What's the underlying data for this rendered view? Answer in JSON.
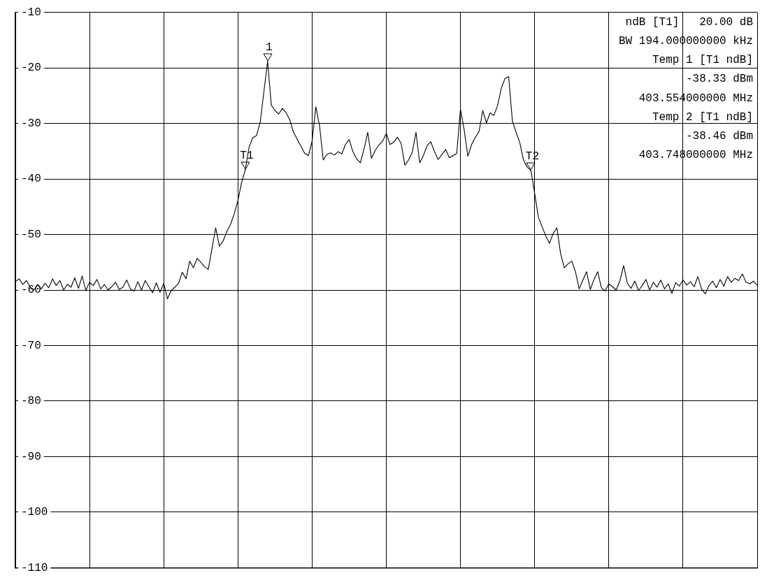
{
  "chart_data": {
    "type": "line",
    "categories": [
      null,
      null,
      null,
      null,
      null,
      null,
      null,
      null,
      null,
      null,
      null,
      null,
      null,
      null,
      null,
      null,
      null,
      null,
      null,
      null,
      null,
      null,
      null,
      null,
      null,
      null,
      null,
      null,
      null,
      null,
      null,
      null,
      null,
      null,
      null,
      null,
      null,
      null,
      null,
      null,
      null,
      null,
      null,
      null,
      null,
      null,
      null,
      null,
      null,
      null,
      null,
      null,
      null,
      null,
      null,
      null,
      null,
      null,
      null,
      null,
      null,
      null,
      null,
      null,
      null,
      null,
      null,
      null,
      null,
      null,
      null,
      null,
      null,
      null,
      null,
      null,
      null,
      null,
      null,
      null,
      null,
      null,
      null,
      null,
      null,
      null,
      null,
      null,
      null,
      null,
      null,
      null,
      null,
      null,
      null,
      null,
      null,
      null,
      null,
      null,
      null,
      null,
      null,
      null,
      null,
      null,
      null,
      null,
      null,
      null,
      null,
      null,
      null,
      null,
      null,
      null,
      null,
      null,
      null,
      null,
      null,
      null,
      null,
      null,
      null,
      null,
      null,
      null,
      null,
      null,
      null,
      null,
      null,
      null,
      null,
      null,
      null,
      null,
      null,
      null,
      null,
      null,
      null,
      null,
      null,
      null,
      null,
      null,
      null,
      null,
      null,
      null,
      null,
      null,
      null,
      null,
      null,
      null,
      null,
      null,
      null,
      null,
      null,
      null,
      null,
      null,
      null,
      null,
      null,
      null,
      null,
      null,
      null,
      null,
      null,
      null,
      null,
      null,
      null,
      null,
      null,
      null,
      null,
      null,
      null,
      null,
      null,
      null,
      null,
      null,
      null,
      null,
      null,
      null,
      null,
      null,
      null,
      null,
      null,
      null,
      null
    ],
    "series": [
      {
        "color": "#000000",
        "values": [
          -58.5,
          -58,
          -59,
          -58.3,
          -59.5,
          -60,
          -59,
          -59.8,
          -58.8,
          -59.6,
          -58,
          -59.2,
          -58.3,
          -60,
          -59,
          -59.5,
          -57.8,
          -59.7,
          -57.5,
          -60.1,
          -58.6,
          -59.2,
          -58.1,
          -59.8,
          -59,
          -60,
          -59.4,
          -58.6,
          -59.9,
          -59.5,
          -58.2,
          -59.8,
          -60.2,
          -58.5,
          -60,
          -58.3,
          -59.4,
          -60.5,
          -58.7,
          -60.4,
          -58.8,
          -61.6,
          -60.1,
          -59.5,
          -58.8,
          -56.8,
          -58,
          -54.8,
          -56,
          -54.3,
          -55,
          -55.8,
          -56.3,
          -52.6,
          -48.8,
          -52.1,
          -51.2,
          -49.5,
          -48.2,
          -46.3,
          -43.9,
          -40.6,
          -38.33,
          -34.3,
          -32.6,
          -32.2,
          -29.8,
          -24.3,
          -18.8,
          -26.7,
          -27.7,
          -28.3,
          -27.3,
          -28.1,
          -29.4,
          -31.6,
          -32.9,
          -34.1,
          -35.4,
          -35.8,
          -33.2,
          -27,
          -30.4,
          -36.6,
          -35.6,
          -35.3,
          -35.7,
          -35.1,
          -35.5,
          -33.8,
          -32.9,
          -35.1,
          -36.4,
          -37.1,
          -34.6,
          -31.6,
          -36.3,
          -34.9,
          -33.9,
          -33.2,
          -31.8,
          -33.8,
          -33.4,
          -32.5,
          -33.6,
          -37.5,
          -36.6,
          -35.2,
          -31.6,
          -37.1,
          -35.8,
          -34,
          -33.3,
          -35.1,
          -36.5,
          -35.6,
          -34.7,
          -36.2,
          -35.8,
          -35.4,
          -27.4,
          -31.2,
          -35.9,
          -33.8,
          -32.5,
          -31.5,
          -27.7,
          -29.9,
          -28.1,
          -28.6,
          -26.8,
          -23.7,
          -21.9,
          -21.6,
          -29.6,
          -31.6,
          -33.5,
          -36.6,
          -37.9,
          -38.46,
          -42.6,
          -46.9,
          -48.6,
          -50.3,
          -51.6,
          -49.8,
          -48.8,
          -53.5,
          -56,
          -55.3,
          -54.8,
          -56.7,
          -59.8,
          -58.2,
          -56.7,
          -59.9,
          -58.1,
          -56.7,
          -59.6,
          -60.2,
          -58.9,
          -59.4,
          -60,
          -58.3,
          -55.6,
          -58.8,
          -59.7,
          -58.4,
          -60.1,
          -59.2,
          -58.1,
          -60,
          -58.6,
          -59.5,
          -58.2,
          -59.8,
          -58.9,
          -60.6,
          -58.7,
          -59.3,
          -58.2,
          -59.1,
          -58.5,
          -59.4,
          -57.6,
          -59.8,
          -60.7,
          -59.2,
          -58.4,
          -59.6,
          -58.1,
          -59.3,
          -57.6,
          -58.6,
          -57.9,
          -58.3,
          -57.1,
          -58.6,
          -58.9,
          -58.4,
          -59.1
        ]
      }
    ],
    "ylim": [
      -110,
      -10
    ],
    "yticks": [
      -110,
      -100,
      -90,
      -80,
      -70,
      -60,
      -50,
      -40,
      -30,
      -20,
      -10
    ],
    "tick_labels": "y",
    "grid": true,
    "legend": false,
    "marker": "none",
    "line_style": "solid",
    "annotations": [
      {
        "text": "1",
        "y": -18.8
      },
      {
        "text": "T1",
        "y": -38.33
      },
      {
        "text": "T2",
        "y": -38.46
      },
      "ndB [T1]   20.00 dB",
      "BW 194.000000000 kHz",
      "Temp 1 [T1 ndB]",
      "-38.33 dBm",
      "403.554000000 MHz",
      "Temp 2 [T1 ndB]",
      "-38.46 dBm",
      "403.748000000 MHz"
    ]
  }
}
